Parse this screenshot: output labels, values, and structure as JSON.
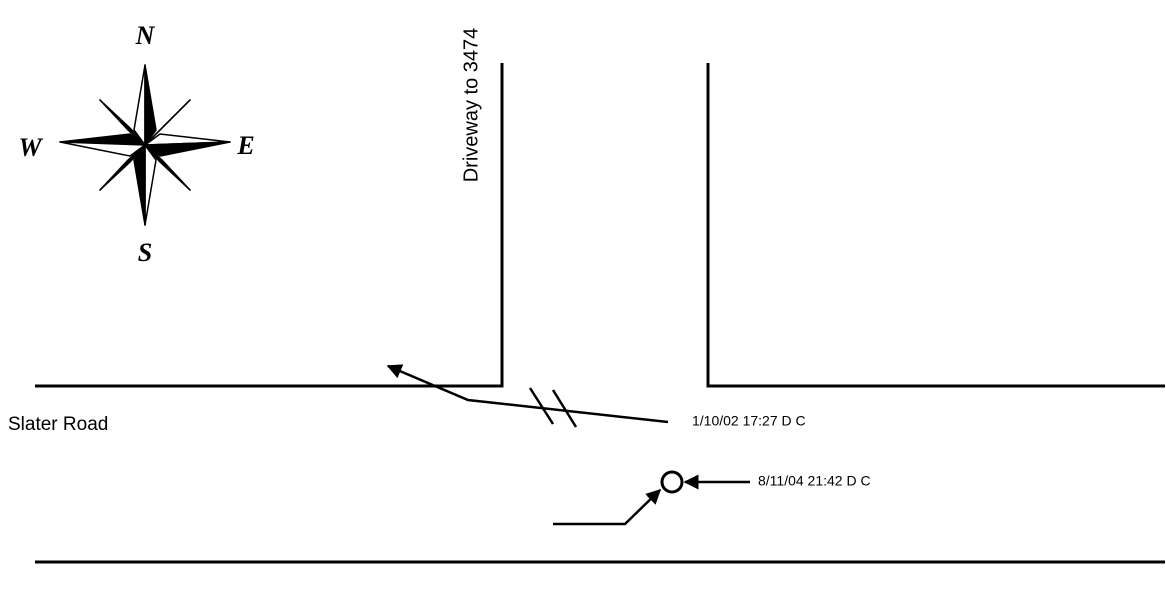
{
  "compass": {
    "north": "N",
    "east": "E",
    "south": "S",
    "west": "W"
  },
  "driveway_label": "Driveway to 3474",
  "road_label": "Slater Road",
  "collisions": [
    {
      "label": "1/10/02 17:27 D C"
    },
    {
      "label": "8/11/04 21:42 D C"
    }
  ]
}
